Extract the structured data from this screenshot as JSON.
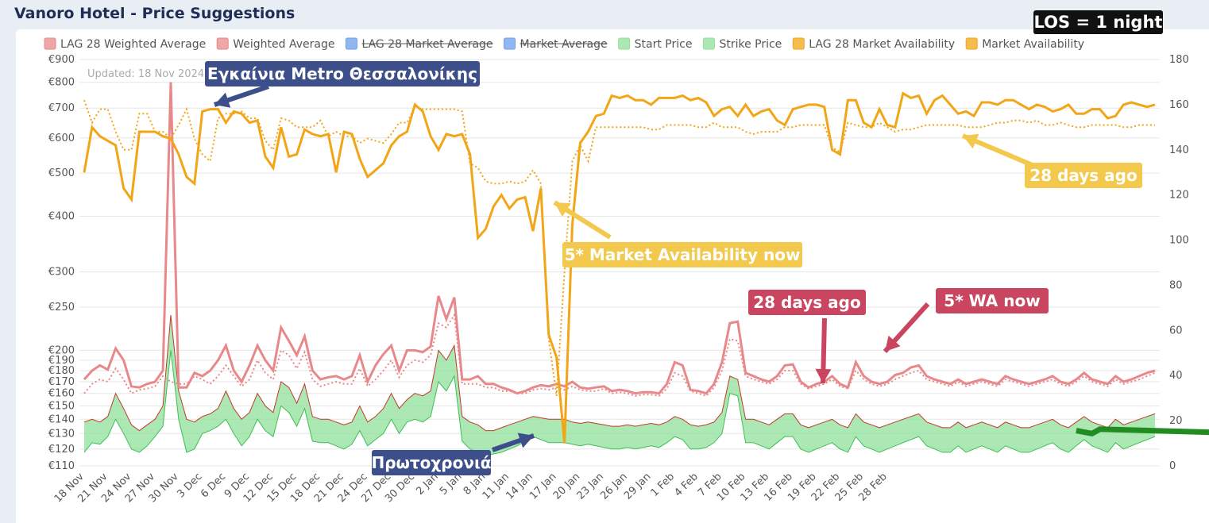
{
  "page_title": "Vanoro Hotel - Price Suggestions",
  "updated_label": "Updated: 18 Nov 2024",
  "los_badge": "LOS = 1 night",
  "annotations": {
    "metro": "Εγκαίνια Metro Θεσσαλονίκης",
    "new_year": "Πρωτοχρονιά",
    "market_now": "5* Market Availability now",
    "days_ago_market": "28 days ago",
    "days_ago_wa": "28 days ago",
    "wa_now": "5* WA now"
  },
  "colors": {
    "weighted_avg": "#e8888a",
    "start_price": "#8fe09a",
    "strike_price": "#c0392b",
    "market_avail": "#f2a516",
    "suggest_green": "#228b22",
    "suggest_yellow": "#f5d400",
    "callout_navy": "#3d4f8a",
    "callout_gold": "#f2c94c",
    "callout_rose": "#c94560"
  },
  "chart_data": {
    "type": "line",
    "legend": [
      {
        "label": "LAG 28 Weighted Average",
        "color": "#e8888a",
        "struck": false
      },
      {
        "label": "Weighted Average",
        "color": "#e8888a",
        "struck": false
      },
      {
        "label": "LAG 28 Market Average",
        "color": "#6d9eeb",
        "struck": true
      },
      {
        "label": "Market Average",
        "color": "#6d9eeb",
        "struck": true
      },
      {
        "label": "Start Price",
        "color": "#8fe09a",
        "struck": false
      },
      {
        "label": "Strike Price",
        "color": "#8fe09a",
        "struck": false
      },
      {
        "label": "LAG 28 Market Availability",
        "color": "#f2a516",
        "struck": false
      },
      {
        "label": "Market Availability",
        "color": "#f2a516",
        "struck": false
      }
    ],
    "y_left_ticks": [
      {
        "label": "€900",
        "v": 900
      },
      {
        "label": "€800",
        "v": 800
      },
      {
        "label": "€700",
        "v": 700
      },
      {
        "label": "€600",
        "v": 600
      },
      {
        "label": "€500",
        "v": 500
      },
      {
        "label": "€400",
        "v": 400
      },
      {
        "label": "€300",
        "v": 300
      },
      {
        "label": "€250",
        "v": 250
      },
      {
        "label": "€200",
        "v": 200
      },
      {
        "label": "€190",
        "v": 190
      },
      {
        "label": "€180",
        "v": 180
      },
      {
        "label": "€170",
        "v": 170
      },
      {
        "label": "€160",
        "v": 160
      },
      {
        "label": "€150",
        "v": 150
      },
      {
        "label": "€140",
        "v": 140
      },
      {
        "label": "€130",
        "v": 130
      },
      {
        "label": "€120",
        "v": 120
      },
      {
        "label": "€110",
        "v": 110
      }
    ],
    "y_left_scale": "log",
    "y_left_range": [
      110,
      900
    ],
    "y_right_ticks": [
      "0",
      "20",
      "40",
      "60",
      "80",
      "100",
      "120",
      "140",
      "160",
      "180"
    ],
    "y_right_range": [
      0,
      180
    ],
    "x_ticks": [
      "18 Nov",
      "21 Nov",
      "24 Nov",
      "27 Nov",
      "30 Nov",
      "3 Dec",
      "6 Dec",
      "9 Dec",
      "12 Dec",
      "15 Dec",
      "18 Dec",
      "21 Dec",
      "24 Dec",
      "27 Dec",
      "30 Dec",
      "2 Jan",
      "5 Jan",
      "8 Jan",
      "11 Jan",
      "14 Jan",
      "17 Jan",
      "20 Jan",
      "23 Jan",
      "26 Jan",
      "29 Jan",
      "1 Feb",
      "4 Feb",
      "7 Feb",
      "10 Feb",
      "13 Feb",
      "16 Feb",
      "19 Feb",
      "22 Feb",
      "25 Feb",
      "28 Feb"
    ],
    "x_start": "18 Nov",
    "market_availability": [
      130,
      150,
      146,
      144,
      142,
      123,
      118,
      148,
      148,
      148,
      146,
      145,
      138,
      128,
      125,
      157,
      158,
      158,
      152,
      157,
      156,
      152,
      153,
      137,
      132,
      150,
      137,
      138,
      149,
      147,
      146,
      147,
      130,
      148,
      147,
      136,
      128,
      131,
      134,
      142,
      146,
      148,
      160,
      157,
      146,
      140,
      147,
      146,
      147,
      138,
      101,
      105,
      115,
      120,
      114,
      118,
      119,
      104,
      123,
      58,
      48,
      10,
      107,
      143,
      148,
      155,
      156,
      164,
      163,
      164,
      162,
      162,
      160,
      163,
      163,
      163,
      164,
      162,
      163,
      161,
      155,
      158,
      159,
      155,
      160,
      155,
      157,
      158,
      153,
      151,
      158,
      159,
      160,
      160,
      159,
      140,
      138,
      162,
      162,
      152,
      150,
      158,
      151,
      150,
      165,
      163,
      164,
      156,
      162,
      164,
      160,
      156,
      157,
      155,
      161,
      161,
      160,
      162,
      162,
      160,
      158,
      160,
      159,
      157,
      158,
      160,
      156,
      156,
      158,
      158,
      154,
      155,
      160,
      161,
      160,
      159,
      160
    ],
    "lag28_market_availability": [
      162,
      152,
      158,
      158,
      148,
      140,
      140,
      156,
      156,
      148,
      148,
      145,
      151,
      158,
      145,
      138,
      135,
      154,
      156,
      156,
      157,
      154,
      154,
      144,
      140,
      154,
      153,
      150,
      150,
      150,
      153,
      146,
      148,
      146,
      146,
      143,
      145,
      144,
      143,
      147,
      152,
      152,
      159,
      158,
      158,
      158,
      158,
      158,
      157,
      134,
      132,
      126,
      125,
      125,
      126,
      125,
      126,
      131,
      125,
      56,
      31,
      86,
      135,
      142,
      135,
      150,
      150,
      150,
      150,
      150,
      150,
      150,
      149,
      149,
      151,
      151,
      151,
      151,
      150,
      150,
      152,
      150,
      150,
      150,
      148,
      147,
      148,
      148,
      148,
      150,
      150,
      151,
      151,
      151,
      151,
      141,
      139,
      152,
      151,
      150,
      150,
      152,
      150,
      148,
      149,
      149,
      150,
      151,
      151,
      151,
      151,
      151,
      150,
      150,
      150,
      151,
      152,
      152,
      153,
      153,
      152,
      153,
      151,
      151,
      152,
      151,
      150,
      150,
      151,
      151,
      151,
      151,
      150,
      150,
      151,
      151,
      151
    ],
    "weighted_average": [
      172,
      180,
      185,
      181,
      202,
      190,
      166,
      165,
      168,
      170,
      180,
      800,
      165,
      165,
      178,
      175,
      180,
      190,
      205,
      180,
      170,
      185,
      205,
      190,
      180,
      225,
      210,
      195,
      215,
      180,
      172,
      174,
      175,
      172,
      175,
      195,
      170,
      185,
      196,
      205,
      180,
      200,
      200,
      198,
      204,
      265,
      235,
      263,
      172,
      172,
      175,
      168,
      168,
      165,
      163,
      160,
      162,
      165,
      167,
      166,
      168,
      166,
      170,
      165,
      164,
      165,
      166,
      162,
      163,
      162,
      160,
      161,
      161,
      160,
      168,
      188,
      185,
      163,
      162,
      160,
      168,
      188,
      230,
      232,
      178,
      175,
      172,
      170,
      175,
      185,
      186,
      170,
      165,
      168,
      170,
      175,
      168,
      165,
      188,
      175,
      170,
      168,
      170,
      176,
      178,
      183,
      185,
      175,
      172,
      170,
      168,
      172,
      168,
      170,
      172,
      170,
      168,
      175,
      172,
      170,
      168,
      170,
      172,
      175,
      170,
      168,
      172,
      178,
      172,
      170,
      168,
      175,
      170,
      172,
      175,
      178,
      180
    ],
    "lag28_weighted_average": [
      160,
      168,
      172,
      170,
      182,
      172,
      160,
      163,
      164,
      166,
      175,
      170,
      168,
      168,
      175,
      172,
      168,
      175,
      185,
      175,
      166,
      172,
      190,
      178,
      172,
      200,
      195,
      182,
      198,
      172,
      166,
      168,
      170,
      168,
      168,
      182,
      166,
      172,
      180,
      190,
      174,
      185,
      190,
      188,
      195,
      230,
      225,
      240,
      168,
      168,
      168,
      165,
      165,
      162,
      162,
      160,
      160,
      163,
      164,
      163,
      165,
      163,
      166,
      163,
      162,
      162,
      164,
      160,
      161,
      160,
      158,
      159,
      159,
      158,
      164,
      178,
      175,
      162,
      160,
      158,
      165,
      180,
      212,
      210,
      175,
      172,
      170,
      168,
      172,
      180,
      180,
      168,
      164,
      166,
      168,
      172,
      166,
      164,
      180,
      172,
      168,
      166,
      168,
      172,
      175,
      178,
      180,
      172,
      170,
      168,
      166,
      170,
      166,
      168,
      170,
      168,
      166,
      172,
      170,
      168,
      166,
      168,
      170,
      172,
      168,
      166,
      170,
      175,
      170,
      168,
      166,
      172,
      168,
      170,
      172,
      175,
      178
    ],
    "start_price": [
      118,
      124,
      123,
      128,
      140,
      130,
      120,
      118,
      122,
      128,
      135,
      200,
      140,
      118,
      120,
      130,
      132,
      135,
      140,
      130,
      122,
      128,
      140,
      132,
      128,
      150,
      145,
      135,
      148,
      125,
      124,
      124,
      122,
      120,
      123,
      132,
      122,
      126,
      130,
      140,
      130,
      138,
      140,
      138,
      142,
      170,
      162,
      175,
      125,
      120,
      118,
      116,
      117,
      118,
      120,
      122,
      125,
      128,
      126,
      124,
      124,
      124,
      123,
      122,
      123,
      122,
      121,
      120,
      120,
      121,
      120,
      121,
      122,
      121,
      124,
      128,
      126,
      120,
      120,
      121,
      124,
      130,
      160,
      158,
      124,
      124,
      122,
      120,
      124,
      128,
      128,
      120,
      118,
      120,
      122,
      124,
      120,
      118,
      128,
      122,
      120,
      118,
      120,
      122,
      124,
      126,
      128,
      122,
      120,
      118,
      118,
      122,
      118,
      120,
      122,
      120,
      118,
      122,
      120,
      118,
      118,
      120,
      122,
      124,
      120,
      118,
      122,
      126,
      122,
      120,
      118,
      124,
      120,
      122,
      124,
      126,
      128
    ],
    "strike_price": [
      138,
      140,
      138,
      142,
      160,
      148,
      136,
      132,
      136,
      140,
      150,
      240,
      162,
      140,
      138,
      142,
      144,
      148,
      162,
      148,
      140,
      145,
      160,
      150,
      145,
      170,
      165,
      152,
      168,
      142,
      140,
      140,
      138,
      136,
      138,
      150,
      138,
      142,
      148,
      160,
      148,
      155,
      160,
      158,
      162,
      200,
      190,
      205,
      142,
      138,
      136,
      132,
      132,
      134,
      136,
      138,
      140,
      142,
      141,
      140,
      140,
      140,
      138,
      137,
      138,
      137,
      136,
      135,
      135,
      136,
      135,
      136,
      137,
      136,
      138,
      142,
      140,
      136,
      135,
      136,
      138,
      145,
      175,
      172,
      140,
      140,
      138,
      136,
      140,
      144,
      144,
      136,
      134,
      136,
      138,
      140,
      136,
      134,
      144,
      138,
      136,
      134,
      136,
      138,
      140,
      142,
      144,
      138,
      136,
      134,
      134,
      138,
      134,
      136,
      138,
      136,
      134,
      138,
      136,
      134,
      134,
      136,
      138,
      140,
      136,
      134,
      138,
      142,
      138,
      136,
      134,
      140,
      136,
      138,
      140,
      142,
      144
    ],
    "suggested_green": [
      [
        126,
        132
      ],
      [
        127,
        131
      ],
      [
        128,
        130
      ],
      [
        129,
        133
      ],
      [
        156,
        129
      ],
      [
        157,
        129
      ],
      [
        158,
        130
      ],
      [
        159,
        131
      ],
      [
        161,
        133
      ],
      [
        163,
        139
      ],
      [
        164,
        141
      ],
      [
        165,
        142
      ],
      [
        166,
        143
      ],
      [
        167,
        141
      ],
      [
        168,
        144
      ],
      [
        169,
        142
      ],
      [
        170,
        143
      ],
      [
        171,
        141
      ],
      [
        172,
        142
      ],
      [
        173,
        141
      ],
      [
        174,
        140
      ],
      [
        175,
        142
      ],
      [
        176,
        141
      ],
      [
        177,
        140
      ],
      [
        178,
        142
      ],
      [
        179,
        141
      ],
      [
        180,
        140
      ],
      [
        181,
        142
      ],
      [
        182,
        140
      ],
      [
        183,
        141
      ],
      [
        184,
        142
      ],
      [
        185,
        141
      ],
      [
        186,
        140
      ]
    ],
    "series_note": "Suggested price markers are shown as dots and thick segments; dates from 18 Nov to 28 Feb."
  }
}
